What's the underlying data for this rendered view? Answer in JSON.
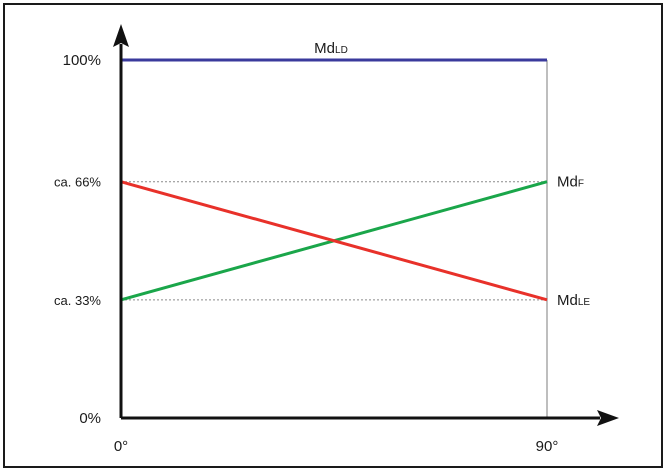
{
  "chart_data": {
    "type": "line",
    "title": "",
    "xlabel": "",
    "ylabel": "",
    "x": [
      0,
      90
    ],
    "xlim": [
      0,
      90
    ],
    "ylim": [
      0,
      100
    ],
    "x_ticks": [
      {
        "value": 0,
        "label": "0°"
      },
      {
        "value": 90,
        "label": "90°"
      }
    ],
    "y_ticks": [
      {
        "value": 0,
        "label": "0%"
      },
      {
        "value": 33,
        "label": "ca. 33%"
      },
      {
        "value": 66,
        "label": "ca. 66%"
      },
      {
        "value": 100,
        "label": "100%"
      }
    ],
    "grid": "dashed reference lines at 33% and 66%",
    "legend": "none",
    "series": [
      {
        "name": "MdLD",
        "name_main": "Md",
        "name_sub": "LD",
        "values": [
          100,
          100
        ],
        "color": "#3a3a9c",
        "label_position": "top"
      },
      {
        "name": "MdF",
        "name_main": "Md",
        "name_sub": "F",
        "values": [
          33,
          66
        ],
        "color": "#1aa64a",
        "label_position": "right"
      },
      {
        "name": "MdLE",
        "name_main": "Md",
        "name_sub": "LE",
        "values": [
          66,
          33
        ],
        "color": "#e8312a",
        "label_position": "right"
      }
    ]
  }
}
